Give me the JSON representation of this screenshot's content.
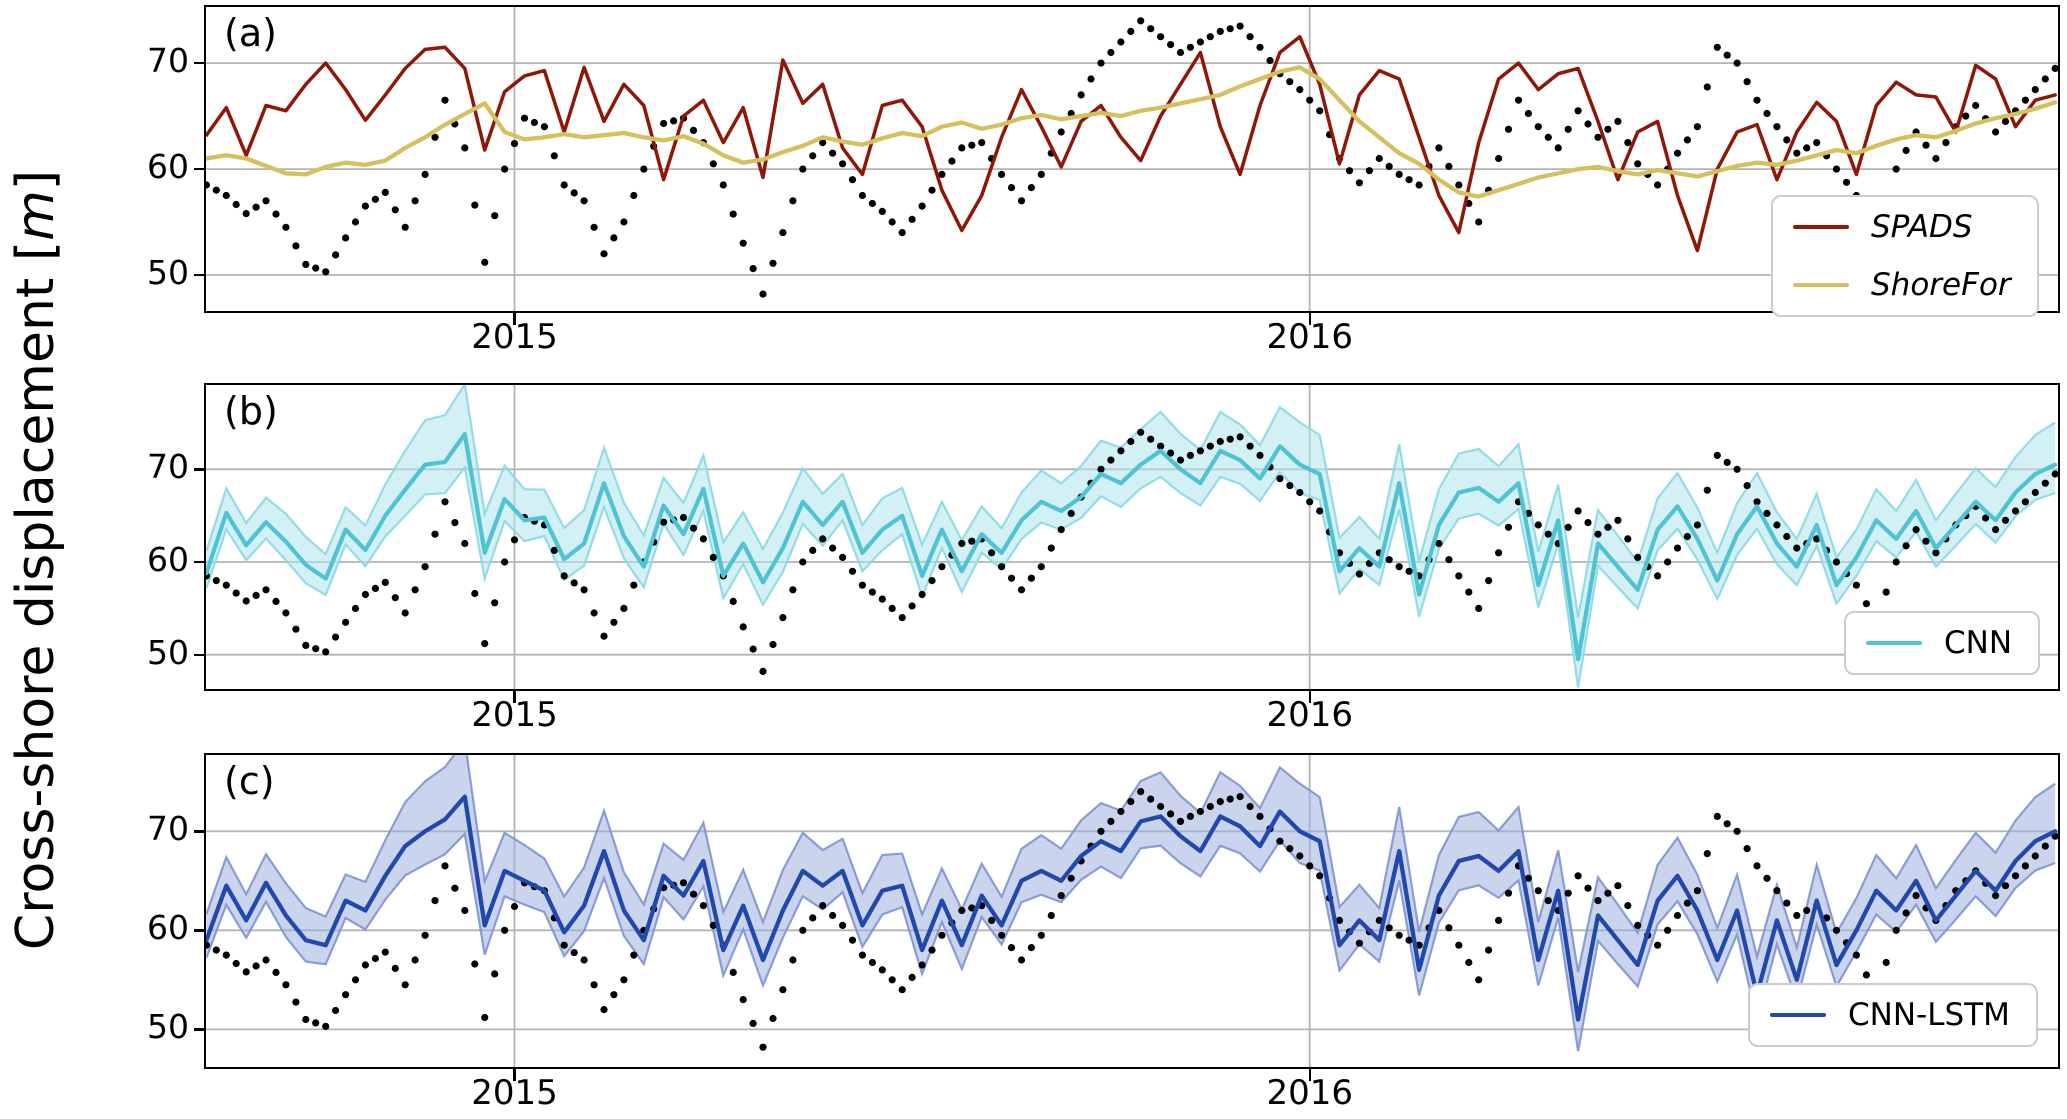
{
  "figure": {
    "ylabel_prefix": "Cross-shore displacement [",
    "ylabel_unit": "m",
    "ylabel_suffix": "]"
  },
  "axes": {
    "xtick_labels": [
      "2015",
      "2016"
    ],
    "ytick_labels": [
      "50",
      "60",
      "70"
    ]
  },
  "colors": {
    "observed": "#000000",
    "spads": "#8e1708",
    "shorefor": "#d4c05e",
    "cnn": "#4fc3d4",
    "cnn_band": "#aee3ec",
    "cnn_band_edge": "#8ad8e4",
    "cnnlstm": "#2149ac",
    "cnnlstm_band": "#9fb0de",
    "cnnlstm_band_edge": "#7e94d2",
    "grid": "#b3b3b3",
    "spine": "#000000",
    "legend_border": "#cccccc"
  },
  "panels": [
    {
      "letter": "(a)",
      "legend": [
        {
          "label": "SPADS",
          "color_key": "spads",
          "italic": true
        },
        {
          "label": "ShoreFor",
          "color_key": "shorefor",
          "italic": true
        }
      ]
    },
    {
      "letter": "(b)",
      "legend": [
        {
          "label": "CNN",
          "color_key": "cnn",
          "italic": false
        }
      ]
    },
    {
      "letter": "(c)",
      "legend": [
        {
          "label": "CNN-LSTM",
          "color_key": "cnnlstm",
          "italic": false
        }
      ]
    }
  ],
  "chart_data": {
    "type": "line",
    "title": "",
    "xlabel": "",
    "ylabel": "Cross-shore displacement [m]",
    "grid": true,
    "x_axis": {
      "start": 2014.6125,
      "step": 0.025,
      "count": 94,
      "unit": "decimal_year"
    },
    "xlim": [
      2014.612,
      2016.941
    ],
    "xticks": [
      2015,
      2016
    ],
    "yticks": [
      50,
      60,
      70
    ],
    "panel_layout": [
      {
        "id": "a",
        "ylim": [
          46.6,
          75.3
        ],
        "series": [
          "observed",
          "SPADS",
          "ShoreFor"
        ],
        "legend_position": "lower right"
      },
      {
        "id": "b",
        "ylim": [
          46.3,
          79.1
        ],
        "series": [
          "observed",
          "CNN"
        ],
        "band": "CNN uncertainty",
        "legend_position": "lower right"
      },
      {
        "id": "c",
        "ylim": [
          46.2,
          77.7
        ],
        "series": [
          "observed",
          "CNN_LSTM"
        ],
        "band": "CNN-LSTM uncertainty",
        "legend_position": "lower right"
      }
    ],
    "series": {
      "observed": [
        58.5,
        57.5,
        55.8,
        57.0,
        54.5,
        51.0,
        50.3,
        53.5,
        56.5,
        57.8,
        54.5,
        59.5,
        66.5,
        62.0,
        51.2,
        60.0,
        64.8,
        64.0,
        58.5,
        57.0,
        52.0,
        55.0,
        60.0,
        64.3,
        64.8,
        62.5,
        58.5,
        53.0,
        48.2,
        54.0,
        60.0,
        62.5,
        60.5,
        57.5,
        56.0,
        54.0,
        56.5,
        59.5,
        62.0,
        62.5,
        59.5,
        57.0,
        59.5,
        63.5,
        67.0,
        70.0,
        72.0,
        74.0,
        72.5,
        71.0,
        72.0,
        73.0,
        73.5,
        71.5,
        69.0,
        67.5,
        65.5,
        61.0,
        58.7,
        61.0,
        59.5,
        58.5,
        62.0,
        58.5,
        55.0,
        61.0,
        66.5,
        64.0,
        62.0,
        65.5,
        63.0,
        64.5,
        60.5,
        58.5,
        61.5,
        64.0,
        71.5,
        70.0,
        66.5,
        64.0,
        61.5,
        62.5,
        60.0,
        57.5,
        53.5,
        60.0,
        63.5,
        61.0,
        64.0,
        66.0,
        63.5,
        65.5,
        67.5,
        69.5
      ],
      "SPADS": [
        63.2,
        65.8,
        61.3,
        66.0,
        65.5,
        68.0,
        70.0,
        67.5,
        64.6,
        67.0,
        69.5,
        71.3,
        71.5,
        69.5,
        61.8,
        67.3,
        68.8,
        69.3,
        63.5,
        69.6,
        64.5,
        68.0,
        66.0,
        59.0,
        65.0,
        66.5,
        62.5,
        65.8,
        59.2,
        70.3,
        66.2,
        68.0,
        62.0,
        59.5,
        66.0,
        66.5,
        64.0,
        58.0,
        54.2,
        57.5,
        63.0,
        67.5,
        64.0,
        60.2,
        64.5,
        66.0,
        63.0,
        60.8,
        65.0,
        68.0,
        71.0,
        64.0,
        59.5,
        66.0,
        71.0,
        72.5,
        68.0,
        60.5,
        67.0,
        69.3,
        68.5,
        63.0,
        57.5,
        54.0,
        62.5,
        68.5,
        70.0,
        67.5,
        69.0,
        69.5,
        64.5,
        59.0,
        63.5,
        64.5,
        57.5,
        52.3,
        60.0,
        63.5,
        64.2,
        59.0,
        63.5,
        66.3,
        64.5,
        59.5,
        66.0,
        68.2,
        67.0,
        66.8,
        63.5,
        69.8,
        68.5,
        64.0,
        66.5,
        67.0
      ],
      "ShoreFor": [
        61.0,
        61.3,
        61.0,
        60.3,
        59.6,
        59.5,
        60.2,
        60.6,
        60.4,
        60.8,
        62.0,
        63.0,
        64.2,
        65.2,
        66.2,
        63.5,
        62.8,
        63.0,
        63.3,
        63.0,
        63.2,
        63.4,
        63.0,
        62.7,
        63.1,
        62.4,
        61.3,
        60.6,
        60.9,
        61.6,
        62.2,
        63.0,
        62.6,
        62.3,
        62.9,
        63.4,
        63.1,
        64.0,
        64.4,
        63.8,
        64.2,
        64.8,
        65.1,
        64.7,
        65.0,
        65.3,
        65.0,
        65.5,
        65.8,
        66.2,
        66.6,
        67.0,
        67.8,
        68.5,
        69.2,
        69.6,
        68.5,
        66.5,
        64.5,
        63.0,
        61.5,
        60.5,
        59.0,
        57.8,
        57.4,
        58.0,
        58.6,
        59.2,
        59.6,
        60.0,
        60.2,
        59.8,
        59.5,
        59.9,
        59.6,
        59.3,
        59.8,
        60.3,
        60.6,
        60.4,
        60.8,
        61.3,
        61.8,
        61.5,
        62.2,
        62.8,
        63.2,
        63.0,
        63.6,
        64.3,
        64.8,
        65.2,
        65.7,
        66.3
      ],
      "CNN": [
        58.8,
        65.3,
        61.8,
        64.3,
        62.2,
        59.7,
        58.2,
        63.5,
        61.3,
        65.0,
        67.8,
        70.5,
        70.8,
        73.8,
        61.0,
        66.8,
        64.5,
        64.8,
        60.3,
        62.0,
        68.5,
        62.8,
        59.5,
        66.1,
        63.0,
        67.9,
        58.5,
        62.0,
        57.8,
        61.5,
        66.5,
        64.0,
        66.5,
        61.0,
        63.5,
        65.0,
        58.5,
        63.5,
        59.0,
        63.0,
        61.0,
        64.5,
        66.5,
        65.5,
        67.0,
        69.5,
        68.5,
        70.5,
        72.0,
        70.0,
        68.5,
        72.0,
        71.0,
        69.0,
        72.5,
        70.5,
        69.5,
        59.0,
        61.5,
        59.5,
        68.5,
        56.5,
        64.0,
        67.5,
        68.0,
        66.5,
        68.5,
        57.5,
        64.5,
        49.5,
        62.0,
        59.5,
        57.0,
        63.5,
        66.0,
        62.5,
        58.0,
        63.0,
        66.0,
        62.0,
        59.5,
        64.0,
        57.5,
        60.5,
        64.5,
        62.5,
        65.5,
        61.5,
        64.0,
        66.5,
        64.5,
        67.5,
        69.5,
        70.5
      ],
      "CNN_LSTM": [
        59.0,
        64.5,
        61.0,
        64.8,
        61.5,
        59.0,
        58.5,
        63.0,
        62.0,
        65.5,
        68.5,
        70.0,
        71.2,
        73.5,
        60.5,
        66.0,
        65.0,
        64.0,
        59.8,
        62.5,
        68.0,
        62.0,
        59.0,
        65.5,
        63.5,
        67.0,
        58.0,
        62.5,
        57.0,
        62.0,
        66.0,
        64.5,
        66.0,
        60.5,
        64.0,
        64.5,
        58.0,
        63.0,
        58.5,
        63.5,
        60.5,
        65.0,
        66.0,
        65.0,
        67.5,
        69.0,
        68.0,
        71.0,
        71.5,
        69.5,
        68.0,
        71.5,
        70.5,
        68.5,
        72.0,
        70.0,
        69.0,
        58.5,
        61.0,
        59.0,
        68.0,
        56.0,
        63.5,
        67.0,
        67.5,
        66.0,
        68.0,
        57.0,
        64.0,
        51.0,
        61.5,
        59.0,
        56.5,
        63.0,
        65.5,
        62.0,
        57.0,
        62.0,
        53.5,
        61.0,
        55.0,
        63.0,
        56.5,
        60.0,
        64.0,
        62.0,
        65.0,
        61.0,
        63.5,
        66.0,
        64.0,
        67.0,
        69.0,
        70.0
      ],
      "CNN_band_halfwidth": [
        2.0,
        2.2,
        2.0,
        2.2,
        2.5,
        2.5,
        2.2,
        2.0,
        2.2,
        2.8,
        3.5,
        4.0,
        4.2,
        4.5,
        3.5,
        3.0,
        2.8,
        2.5,
        2.8,
        3.0,
        3.2,
        3.0,
        2.8,
        2.5,
        2.8,
        3.0,
        3.0,
        2.8,
        3.0,
        3.2,
        3.0,
        2.8,
        2.5,
        2.5,
        2.8,
        2.5,
        2.8,
        2.5,
        2.8,
        2.5,
        2.2,
        2.5,
        2.8,
        2.5,
        2.8,
        3.0,
        3.2,
        3.2,
        3.5,
        3.2,
        3.0,
        3.5,
        3.2,
        3.0,
        3.5,
        3.8,
        3.5,
        3.0,
        2.8,
        2.5,
        3.5,
        3.0,
        3.2,
        3.5,
        3.5,
        3.2,
        3.5,
        3.0,
        3.2,
        3.8,
        3.0,
        2.8,
        2.5,
        2.8,
        3.0,
        2.8,
        2.5,
        2.8,
        3.0,
        2.8,
        2.5,
        2.8,
        2.5,
        2.5,
        2.8,
        2.5,
        2.8,
        2.5,
        2.8,
        3.0,
        3.0,
        3.2,
        3.5,
        3.8
      ],
      "CNN_LSTM_band_halfwidth": [
        2.2,
        2.4,
        2.2,
        2.4,
        2.7,
        2.7,
        2.4,
        2.2,
        2.4,
        3.0,
        3.7,
        4.2,
        4.4,
        4.7,
        3.7,
        3.2,
        3.0,
        2.7,
        3.0,
        3.2,
        3.4,
        3.2,
        3.0,
        2.7,
        3.0,
        3.2,
        3.2,
        3.0,
        3.2,
        3.4,
        3.2,
        3.0,
        2.7,
        2.7,
        3.0,
        2.7,
        3.0,
        2.7,
        3.0,
        2.7,
        2.4,
        2.7,
        3.0,
        2.7,
        3.0,
        3.2,
        3.4,
        3.4,
        3.7,
        3.4,
        3.2,
        3.7,
        3.4,
        3.2,
        3.7,
        4.0,
        3.7,
        3.2,
        3.0,
        2.7,
        3.7,
        3.2,
        3.4,
        3.7,
        3.7,
        3.4,
        3.7,
        3.2,
        3.4,
        4.0,
        3.2,
        3.0,
        2.7,
        3.0,
        3.2,
        3.0,
        2.7,
        3.0,
        3.2,
        3.0,
        2.7,
        3.0,
        2.7,
        2.7,
        3.0,
        2.7,
        3.0,
        2.7,
        3.0,
        3.2,
        3.2,
        3.4,
        3.7,
        4.0
      ]
    },
    "legend_entries": {
      "a": [
        "SPADS",
        "ShoreFor"
      ],
      "b": [
        "CNN"
      ],
      "c": [
        "CNN-LSTM"
      ]
    }
  }
}
